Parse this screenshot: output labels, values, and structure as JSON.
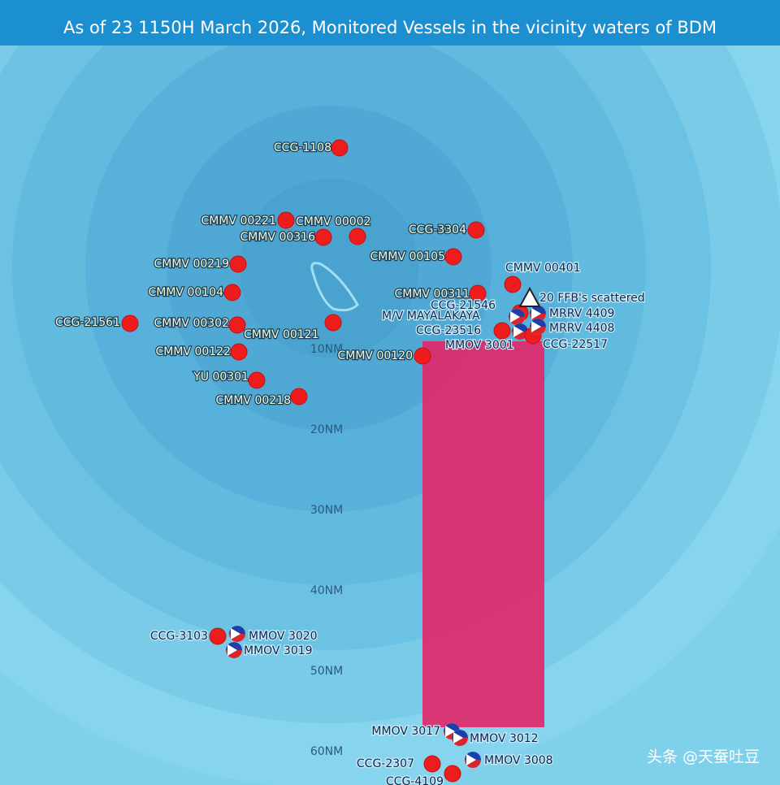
{
  "header": {
    "title": "As of 23 1150H March 2026, Monitored Vessels in the vicinity waters of BDM"
  },
  "rings": [
    "10NM",
    "20NM",
    "30NM",
    "40NM",
    "50NM",
    "60NM"
  ],
  "vessels": [
    {
      "label": "CCG-1108",
      "kind": "dot"
    },
    {
      "label": "CMMV 00221",
      "kind": "dot"
    },
    {
      "label": "CMMV 00002",
      "kind": "dot"
    },
    {
      "label": "CMMV 00316",
      "kind": "dot"
    },
    {
      "label": "CCG-3304",
      "kind": "dot"
    },
    {
      "label": "CMMV 00105",
      "kind": "dot"
    },
    {
      "label": "CMMV 00219",
      "kind": "dot"
    },
    {
      "label": "CMMV 00104",
      "kind": "dot"
    },
    {
      "label": "CCG-21561",
      "kind": "dot"
    },
    {
      "label": "CMMV 00302",
      "kind": "dot"
    },
    {
      "label": "CMMV 00121",
      "kind": "dot"
    },
    {
      "label": "CMMV 00122",
      "kind": "dot"
    },
    {
      "label": "CMMV 00120",
      "kind": "dot"
    },
    {
      "label": "YU 00301",
      "kind": "dot"
    },
    {
      "label": "CMMV 00218",
      "kind": "dot"
    },
    {
      "label": "CMMV 00311",
      "kind": "dot"
    },
    {
      "label": "CMMV 00401",
      "kind": "dot"
    },
    {
      "label": "CCG-21546",
      "kind": "dot"
    },
    {
      "label": "M/V MAYALAKAYA",
      "kind": "flag"
    },
    {
      "label": "CCG-23516",
      "kind": "dot"
    },
    {
      "label": "MMOV 3001",
      "kind": "flag"
    },
    {
      "label": "CCG-22517",
      "kind": "dot"
    },
    {
      "label": "MRRV 4409",
      "kind": "flag"
    },
    {
      "label": "MRRV 4408",
      "kind": "flag"
    },
    {
      "label": "20 FFB's scattered",
      "kind": "triangle"
    },
    {
      "label": "CCG-3103",
      "kind": "dot"
    },
    {
      "label": "MMOV 3020",
      "kind": "flag"
    },
    {
      "label": "MMOV 3019",
      "kind": "flag"
    },
    {
      "label": "MMOV 3017",
      "kind": "flag"
    },
    {
      "label": "MMOV 3012",
      "kind": "flag"
    },
    {
      "label": "CCG-2307",
      "kind": "dot"
    },
    {
      "label": "MMOV 3008",
      "kind": "flag"
    },
    {
      "label": "CCG-4109",
      "kind": "dot"
    }
  ],
  "watermark": "头条 @天蚕吐豆"
}
